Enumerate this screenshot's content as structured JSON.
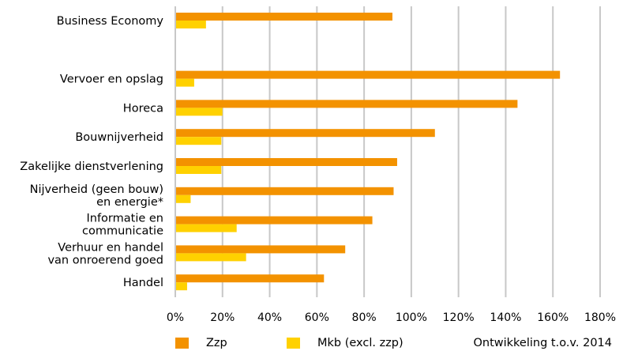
{
  "chart_data": {
    "type": "bar",
    "orientation": "horizontal",
    "categories": [
      [
        "Business Economy"
      ],
      [],
      [
        "Vervoer en opslag"
      ],
      [
        "Horeca"
      ],
      [
        "Bouwnijverheid"
      ],
      [
        "Zakelijke dienstverlening"
      ],
      [
        "Nijverheid (geen bouw)",
        "en energie*"
      ],
      [
        "Informatie en",
        "communicatie"
      ],
      [
        "Verhuur en handel",
        "van onroerend goed"
      ],
      [
        "Handel"
      ]
    ],
    "series": [
      {
        "name": "Zzp",
        "color": "#F39200",
        "values": [
          92,
          null,
          163,
          145,
          110,
          94,
          92.5,
          83.5,
          72,
          63
        ]
      },
      {
        "name": "Mkb (excl. zzp)",
        "color": "#FFD100",
        "values": [
          13,
          null,
          8,
          20,
          19.5,
          19.5,
          6.5,
          26,
          30,
          5
        ]
      }
    ],
    "xlim": [
      0,
      180
    ],
    "xticks": [
      0,
      20,
      40,
      60,
      80,
      100,
      120,
      140,
      160,
      180
    ],
    "tick_format": "%",
    "grid": true,
    "legend_position": "bottom"
  },
  "note": "Ontwikkeling t.o.v. 2014"
}
